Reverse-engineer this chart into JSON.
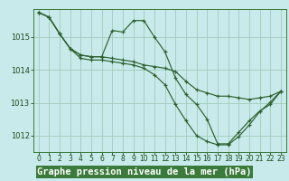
{
  "bg_color": "#c8eaea",
  "plot_bg_color": "#c8eaea",
  "grid_color": "#a0ccbb",
  "line_color": "#2d6030",
  "xlabel": "Graphe pression niveau de la mer (hPa)",
  "xlabel_fontsize": 7.5,
  "xtick_fontsize": 5.5,
  "ytick_fontsize": 6.0,
  "xlim": [
    -0.5,
    23.5
  ],
  "ylim": [
    1011.5,
    1015.85
  ],
  "yticks": [
    1012,
    1013,
    1014,
    1015
  ],
  "xticks": [
    0,
    1,
    2,
    3,
    4,
    5,
    6,
    7,
    8,
    9,
    10,
    11,
    12,
    13,
    14,
    15,
    16,
    17,
    18,
    19,
    20,
    21,
    22,
    23
  ],
  "xlabel_bg": "#3a7a3a",
  "xlabel_fg": "#ffffff",
  "series": [
    {
      "x": [
        0,
        1,
        2,
        3,
        4,
        5,
        6,
        7,
        8,
        9,
        10,
        11,
        12,
        13,
        14,
        15,
        16,
        17,
        18,
        19,
        20,
        21,
        22,
        23
      ],
      "y": [
        1015.75,
        1015.6,
        1015.1,
        1014.65,
        1014.45,
        1014.4,
        1014.4,
        1015.2,
        1015.15,
        1015.5,
        1015.5,
        1015.0,
        1014.55,
        1013.75,
        1013.25,
        1012.95,
        1012.5,
        1011.75,
        1011.75,
        1012.1,
        1012.45,
        1012.75,
        1012.95,
        1013.35
      ]
    },
    {
      "x": [
        0,
        1,
        2,
        3,
        4,
        5,
        6,
        7,
        8,
        9,
        10,
        11,
        12,
        13,
        14,
        15,
        16,
        17,
        18,
        19,
        20,
        21,
        22,
        23
      ],
      "y": [
        1015.75,
        1015.6,
        1015.1,
        1014.65,
        1014.45,
        1014.4,
        1014.4,
        1014.35,
        1014.3,
        1014.25,
        1014.15,
        1014.1,
        1014.05,
        1013.95,
        1013.65,
        1013.4,
        1013.3,
        1013.2,
        1013.2,
        1013.15,
        1013.1,
        1013.15,
        1013.2,
        1013.35
      ]
    },
    {
      "x": [
        0,
        1,
        2,
        3,
        4,
        5,
        6,
        7,
        8,
        9,
        10,
        11,
        12,
        13,
        14,
        15,
        16,
        17,
        18,
        19,
        20,
        21,
        22,
        23
      ],
      "y": [
        1015.75,
        1015.6,
        1015.1,
        1014.65,
        1014.35,
        1014.3,
        1014.3,
        1014.25,
        1014.2,
        1014.15,
        1014.05,
        1013.85,
        1013.55,
        1012.95,
        1012.45,
        1012.0,
        1011.82,
        1011.72,
        1011.72,
        1011.97,
        1012.32,
        1012.73,
        1013.02,
        1013.35
      ]
    }
  ]
}
